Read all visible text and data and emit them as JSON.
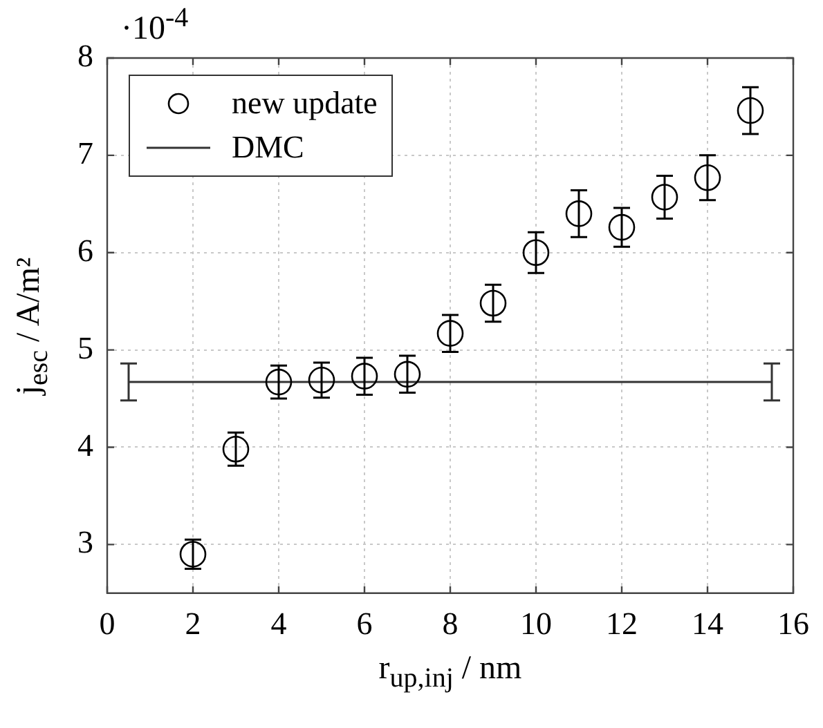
{
  "chart_data": {
    "type": "scatter",
    "xlabel": "r$_{up,inj}$ / nm",
    "ylabel": "j$_{esc}$ / A/m²",
    "annotations": [
      "·10$^{-4}$"
    ],
    "xlim": [
      0,
      16
    ],
    "xticks": [
      0,
      2,
      4,
      6,
      8,
      10,
      12,
      14,
      16
    ],
    "ylim": [
      2.5,
      8
    ],
    "yticks": [
      3,
      4,
      5,
      6,
      7,
      8
    ],
    "grid": true,
    "legend": "top left",
    "series": [
      {
        "name": "new update",
        "marker": "circle",
        "color": "#000000",
        "x": [
          2,
          3,
          4,
          5,
          6,
          7,
          8,
          9,
          10,
          11,
          12,
          13,
          14,
          15
        ],
        "values": [
          2.9,
          3.98,
          4.67,
          4.69,
          4.73,
          4.75,
          5.17,
          5.48,
          6.0,
          6.4,
          6.26,
          6.57,
          6.77,
          7.46
        ],
        "errors": [
          0.15,
          0.17,
          0.17,
          0.18,
          0.19,
          0.19,
          0.19,
          0.19,
          0.21,
          0.24,
          0.2,
          0.22,
          0.23,
          0.24
        ]
      },
      {
        "name": "DMC",
        "type": "line",
        "marker": "none",
        "color": "#333333",
        "x": [
          0.5,
          15.5
        ],
        "values": [
          4.67,
          4.67
        ],
        "errors": [
          0.19,
          0.19
        ]
      }
    ]
  }
}
